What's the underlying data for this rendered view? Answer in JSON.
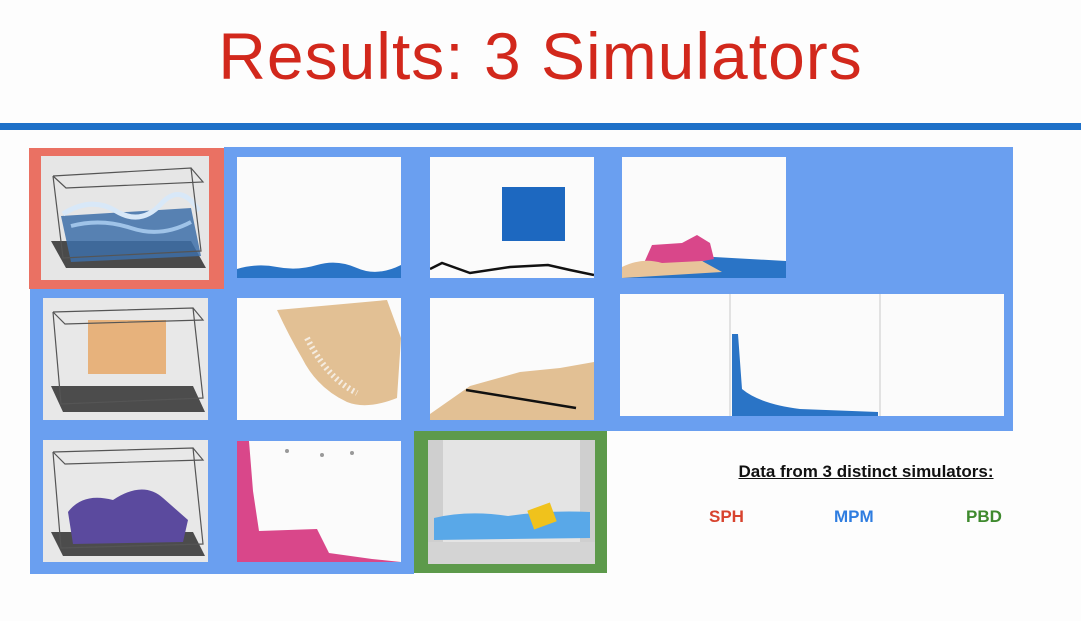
{
  "slide": {
    "title": "Results: 3 Simulators",
    "accent_color": "#1e70c8",
    "title_color": "#d2281c"
  },
  "legend": {
    "heading": "Data from 3 distinct simulators:",
    "items": [
      {
        "label": "SPH",
        "color": "#d8432e"
      },
      {
        "label": "MPM",
        "color": "#2f7de0"
      },
      {
        "label": "PBD",
        "color": "#3f8a2e"
      }
    ]
  }
}
